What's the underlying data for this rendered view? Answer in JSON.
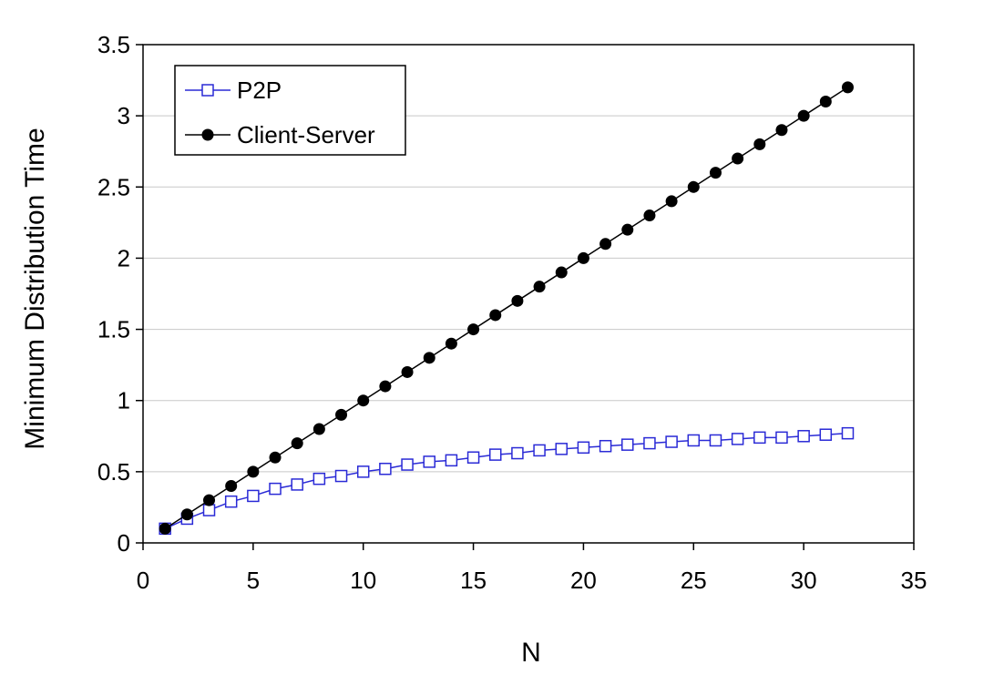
{
  "chart_data": {
    "type": "line",
    "title": "",
    "xlabel": "N",
    "ylabel": "Minimum Distribution Time",
    "xlim": [
      0,
      35
    ],
    "ylim": [
      0,
      3.5
    ],
    "xticks": [
      "0",
      "5",
      "10",
      "15",
      "20",
      "25",
      "30",
      "35"
    ],
    "yticks": [
      "0",
      "0.5",
      "1",
      "1.5",
      "2",
      "2.5",
      "3",
      "3.5"
    ],
    "grid": "horizontal",
    "legend_position": "top-left",
    "x": [
      1,
      2,
      3,
      4,
      5,
      6,
      7,
      8,
      9,
      10,
      11,
      12,
      13,
      14,
      15,
      16,
      17,
      18,
      19,
      20,
      21,
      22,
      23,
      24,
      25,
      26,
      27,
      28,
      29,
      30,
      31,
      32
    ],
    "series": [
      {
        "name": "P2P",
        "marker": "open-square",
        "color": "#2a2ad6",
        "values": [
          0.1,
          0.17,
          0.23,
          0.29,
          0.33,
          0.38,
          0.41,
          0.45,
          0.47,
          0.5,
          0.52,
          0.55,
          0.57,
          0.58,
          0.6,
          0.62,
          0.63,
          0.65,
          0.66,
          0.67,
          0.68,
          0.69,
          0.7,
          0.71,
          0.72,
          0.72,
          0.73,
          0.74,
          0.74,
          0.75,
          0.76,
          0.77
        ]
      },
      {
        "name": "Client-Server",
        "marker": "filled-circle",
        "color": "#000000",
        "values": [
          0.1,
          0.2,
          0.3,
          0.4,
          0.5,
          0.6,
          0.7,
          0.8,
          0.9,
          1.0,
          1.1,
          1.2,
          1.3,
          1.4,
          1.5,
          1.6,
          1.7,
          1.8,
          1.9,
          2.0,
          2.1,
          2.2,
          2.3,
          2.4,
          2.5,
          2.6,
          2.7,
          2.8,
          2.9,
          3.0,
          3.1,
          3.2
        ]
      }
    ]
  }
}
